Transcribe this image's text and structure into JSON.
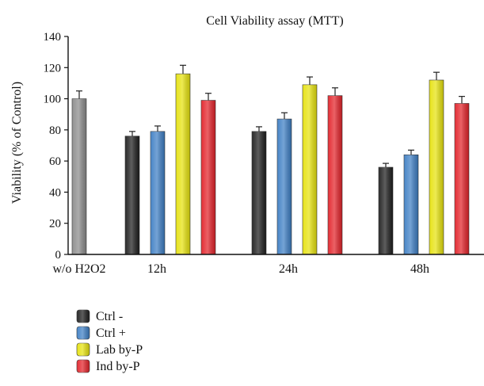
{
  "chart_data": {
    "type": "bar",
    "title": "Cell Viability assay (MTT)",
    "ylabel": "Viability (% of Control)",
    "xlabel": "",
    "ylim": [
      0,
      140
    ],
    "yticks": [
      0,
      20,
      40,
      60,
      80,
      100,
      120,
      140
    ],
    "grid": false,
    "legend_position": "bottom-left",
    "control": {
      "label": "w/o H2O2",
      "value": 100,
      "error": 5,
      "color": "#8c8c8c"
    },
    "categories": [
      "12h",
      "24h",
      "48h"
    ],
    "series": [
      {
        "name": "Ctrl -",
        "color": "#1f1f1f",
        "values": [
          76,
          79,
          56
        ],
        "errors": [
          3,
          3,
          2.5
        ]
      },
      {
        "name": "Ctrl +",
        "color": "#3f7fc4",
        "values": [
          79,
          87,
          64
        ],
        "errors": [
          3.5,
          4,
          3
        ]
      },
      {
        "name": "Lab by-P",
        "color": "#e6e20f",
        "values": [
          116,
          109,
          112
        ],
        "errors": [
          5.5,
          5,
          5
        ]
      },
      {
        "name": "Ind by-P",
        "color": "#e3242b",
        "values": [
          99,
          102,
          97
        ],
        "errors": [
          4.5,
          5,
          4.5
        ]
      }
    ]
  }
}
